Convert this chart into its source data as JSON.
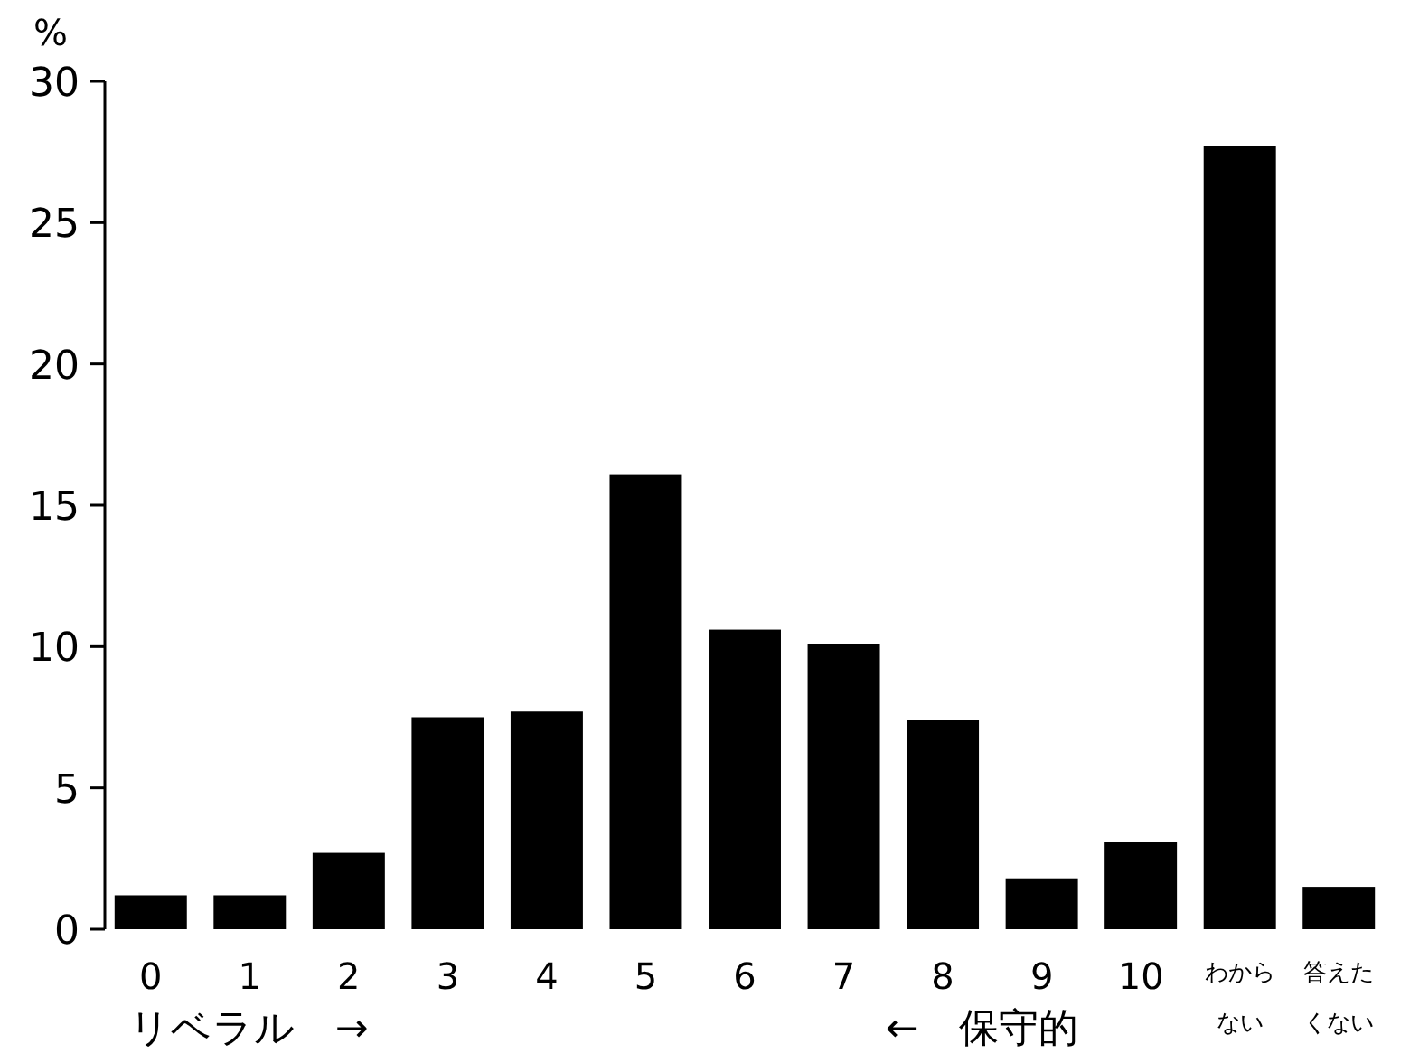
{
  "chart_data": {
    "type": "bar",
    "ylabel": "%",
    "categories": [
      "0",
      "1",
      "2",
      "3",
      "4",
      "5",
      "6",
      "7",
      "8",
      "9",
      "10",
      "わからない",
      "答えたくない"
    ],
    "values": [
      1.2,
      1.2,
      2.7,
      7.5,
      7.7,
      16.1,
      10.6,
      10.1,
      7.4,
      1.8,
      3.1,
      27.7,
      1.5
    ],
    "color": "#000000",
    "ylim": [
      0,
      30
    ],
    "yticks": [
      0,
      5,
      10,
      15,
      20,
      25,
      30
    ],
    "grid": false,
    "annotations": [
      "リベラル　→",
      "←　保守的"
    ]
  }
}
